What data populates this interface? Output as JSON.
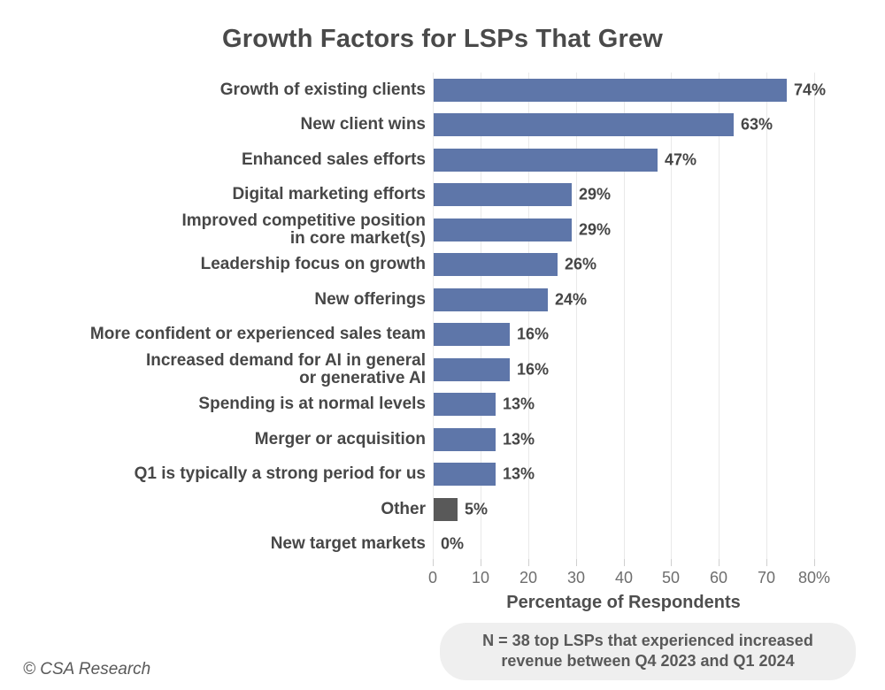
{
  "title": "Growth Factors for LSPs That Grew",
  "footer": {
    "copyright": "© CSA Research",
    "note": "N = 38 top LSPs that experienced increased\nrevenue between Q4 2023 and Q1 2024"
  },
  "colors": {
    "bar_default": "#5e76a9",
    "bar_other": "#595959",
    "gridline": "#e9e9e9"
  },
  "chart_data": {
    "type": "bar",
    "orientation": "horizontal",
    "title": "Growth Factors for LSPs That Grew",
    "xlabel": "Percentage of Respondents",
    "xlim": [
      0,
      80
    ],
    "grid": true,
    "categories": [
      "Growth of existing clients",
      "New client wins",
      "Enhanced sales efforts",
      "Digital marketing efforts",
      "Improved competitive position\nin core market(s)",
      "Leadership focus on growth",
      "New offerings",
      "More confident or experienced sales team",
      "Increased demand for AI in general\nor generative AI",
      "Spending is at normal levels",
      "Merger or acquisition",
      "Q1 is typically a strong period for us",
      "Other",
      "New target markets"
    ],
    "values": [
      74,
      63,
      47,
      29,
      29,
      26,
      24,
      16,
      16,
      13,
      13,
      13,
      5,
      0
    ],
    "value_labels": [
      "74%",
      "63%",
      "47%",
      "29%",
      "29%",
      "26%",
      "24%",
      "16%",
      "16%",
      "13%",
      "13%",
      "13%",
      "5%",
      "0%"
    ],
    "bar_colors": [
      "#5e76a9",
      "#5e76a9",
      "#5e76a9",
      "#5e76a9",
      "#5e76a9",
      "#5e76a9",
      "#5e76a9",
      "#5e76a9",
      "#5e76a9",
      "#5e76a9",
      "#5e76a9",
      "#5e76a9",
      "#595959",
      "#5e76a9"
    ],
    "x_ticks": [
      0,
      10,
      20,
      30,
      40,
      50,
      60,
      70,
      80
    ],
    "x_tick_labels": [
      "0",
      "10",
      "20",
      "30",
      "40",
      "50",
      "60",
      "70",
      "80%"
    ]
  }
}
